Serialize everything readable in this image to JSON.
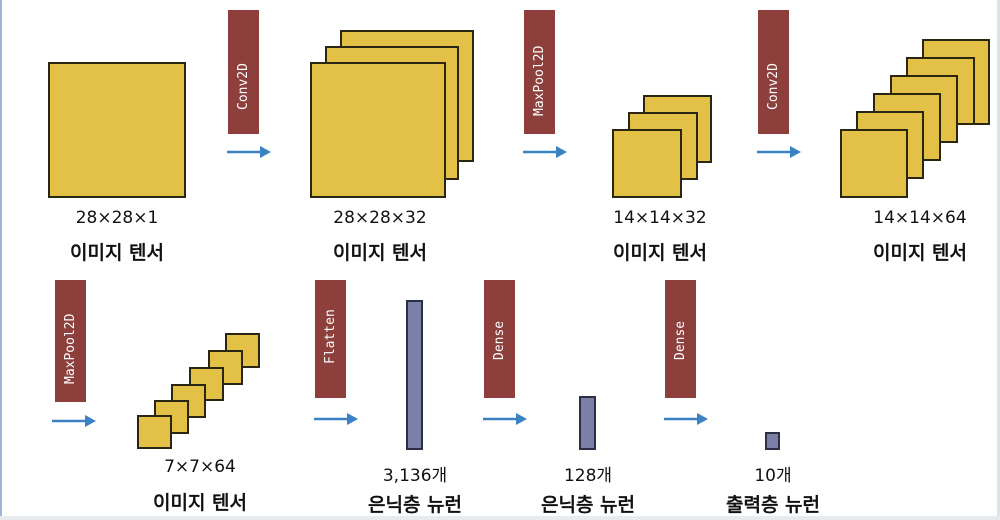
{
  "operations": {
    "conv1": "Conv2D",
    "pool1": "MaxPool2D",
    "conv2": "Conv2D",
    "pool2": "MaxPool2D",
    "flatten": "Flatten",
    "dense1": "Dense",
    "dense2": "Dense"
  },
  "stages": {
    "input": {
      "dims": "28×28×1",
      "name": "이미지 텐서"
    },
    "conv1_out": {
      "dims": "28×28×32",
      "name": "이미지 텐서"
    },
    "pool1_out": {
      "dims": "14×14×32",
      "name": "이미지 텐서"
    },
    "conv2_out": {
      "dims": "14×14×64",
      "name": "이미지 텐서"
    },
    "pool2_out": {
      "dims": "7×7×64",
      "name": "이미지 텐서"
    },
    "flatten_out": {
      "dims": "3,136개",
      "name": "은닉층 뉴런"
    },
    "dense1_out": {
      "dims": "128개",
      "name": "은닉층 뉴런"
    },
    "output": {
      "dims": "10개",
      "name": "출력층 뉴런"
    }
  },
  "colors": {
    "tensor_fill": "#e2c146",
    "operation_fill": "#8c3f3b",
    "neuron_fill": "#7a80a6",
    "arrow": "#3b82c4"
  }
}
